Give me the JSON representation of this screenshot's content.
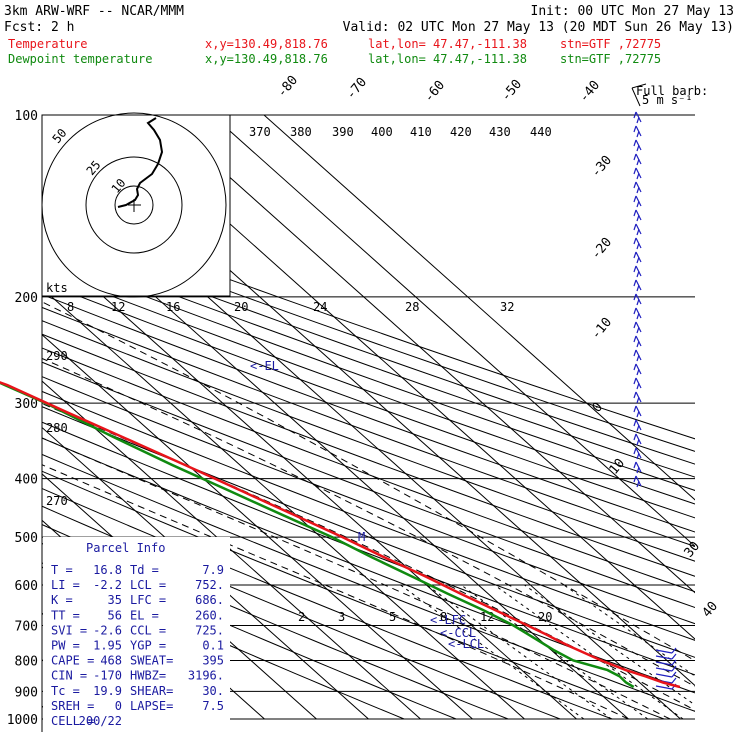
{
  "header": {
    "model": "3km ARW-WRF -- NCAR/MMM",
    "init": "Init: 00 UTC Mon 27 May 13",
    "fcst": "Fcst:   2 h",
    "valid": "Valid: 02 UTC Mon 27 May 13 (20 MDT Sun 26 May 13)",
    "temp_label": "Temperature",
    "dewp_label": "Dewpoint temperature",
    "xy": "x,y=130.49,818.76",
    "latlon": "lat,lon= 47.47,-111.38",
    "stn": "stn=GTF ,72775"
  },
  "colors": {
    "temperature": "#e8141a",
    "dewpoint": "#108a10",
    "parcel_text": "#1a1aa0",
    "wind": "#2020c0"
  },
  "barb_legend": {
    "title": "Full barb:",
    "value": "5 m s⁻¹"
  },
  "pressure_labels": [
    "100",
    "200",
    "300",
    "400",
    "500",
    "600",
    "700",
    "800",
    "900",
    "1000"
  ],
  "isotherm_labels": [
    "-80",
    "-70",
    "-60",
    "-50",
    "-40",
    "-30",
    "-20",
    "-10",
    "0",
    "10",
    "30",
    "40"
  ],
  "theta_top_labels": [
    "370",
    "380",
    "390",
    "400",
    "410",
    "420",
    "430",
    "440"
  ],
  "mixing_ratio_labels": [
    "8",
    "12",
    "16",
    "20",
    "24",
    "28",
    "32"
  ],
  "mixing_ratio_low_labels": [
    "2",
    "3",
    "5",
    "8",
    "12",
    "20"
  ],
  "theta_side_labels": [
    "290",
    "280",
    "270"
  ],
  "kts_label": "kts",
  "hodograph_labels": [
    "50",
    "25",
    "10"
  ],
  "markers": {
    "el": "<-EL",
    "lfc": "<-LFC",
    "ccl": "<-CCL",
    "lcl": "<-LCL",
    "m": "M"
  },
  "parcel_info": {
    "title": "Parcel Info",
    "rows": [
      [
        "T  =",
        "16.8",
        "Td =",
        "7.9"
      ],
      [
        "LI =",
        "-2.2",
        "LCL =",
        "752."
      ],
      [
        "K  =",
        "35",
        "LFC =",
        "686."
      ],
      [
        "TT =",
        "56",
        "EL =",
        "260."
      ],
      [
        "SVI =",
        "-2.6",
        "CCL =",
        "725."
      ],
      [
        "PW =",
        "1.95",
        "YGP =",
        "0.1"
      ],
      [
        "CAPE =",
        "468",
        "SWEAT=",
        "395"
      ],
      [
        "CIN =",
        "-170",
        "HWBZ=",
        "3196."
      ],
      [
        "Tc =",
        "19.9",
        "SHEAR=",
        "30."
      ],
      [
        "SREH =",
        "0",
        "LAPSE=",
        "7.5"
      ],
      [
        "CELL =",
        "200/22",
        "",
        ""
      ]
    ]
  },
  "chart_data": {
    "type": "line",
    "title": "",
    "xlabel": "",
    "ylabel": "",
    "ylim": [
      1000,
      100
    ],
    "series": [
      {
        "name": "Temperature",
        "pressure": [
          885,
          870,
          850,
          830,
          800,
          760,
          740,
          725,
          700,
          660,
          620,
          580,
          540,
          500,
          460,
          420,
          380,
          340,
          310,
          280,
          275,
          260,
          245,
          230,
          210,
          200,
          185,
          170,
          155,
          140,
          128,
          115,
          100
        ],
        "values": [
          16.8,
          14.5,
          12.5,
          10,
          7.4,
          4.5,
          3.2,
          2.4,
          0.7,
          -2.2,
          -5.3,
          -8.4,
          -12.1,
          -15.8,
          -20.3,
          -25.2,
          -30.5,
          -36.8,
          -42,
          -47.5,
          -49,
          -51,
          -51.5,
          -52,
          -52.5,
          -52,
          -53,
          -54,
          -55.5,
          -57,
          -59,
          -61,
          -64
        ]
      },
      {
        "name": "Dewpoint temperature",
        "pressure": [
          885,
          870,
          850,
          830,
          800,
          770,
          740,
          700,
          660,
          620,
          580,
          540,
          500,
          460,
          420,
          380,
          340,
          300,
          280,
          260,
          240,
          220,
          200,
          185,
          170,
          155,
          140,
          128,
          115,
          100
        ],
        "values": [
          7.9,
          7.4,
          7.5,
          6.5,
          2.0,
          0.5,
          -0.5,
          -2,
          -4.5,
          -7.8,
          -11,
          -14.5,
          -17.8,
          -22.5,
          -27.5,
          -33,
          -38.5,
          -44,
          -48,
          -52,
          -56,
          -60,
          -64,
          -68,
          -73,
          -75,
          -78,
          -79,
          -82,
          -86
        ]
      }
    ]
  }
}
